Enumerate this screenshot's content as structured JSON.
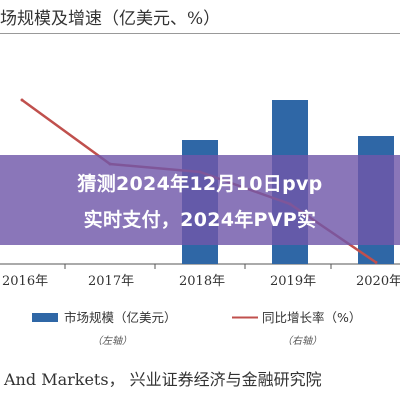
{
  "header": {
    "title": "场规模及增速（亿美元、%）"
  },
  "chart_data": {
    "type": "bar",
    "categories": [
      "2016年",
      "2017年",
      "2018年",
      "2019年",
      "2020年"
    ],
    "series": [
      {
        "name": "市场规模（亿美元）",
        "kind": "bar",
        "axis": "left",
        "values": [
          null,
          null,
          6.2,
          8.2,
          6.4
        ]
      },
      {
        "name": "同比增长率（%）",
        "kind": "line",
        "axis": "right",
        "values": [
          20.5,
          12.5,
          11.5,
          7.5,
          0.2
        ]
      }
    ],
    "ylim": [
      0,
      10
    ],
    "ylim_right": [
      0,
      25
    ],
    "colors": {
      "bar": "#2f67a6",
      "line": "#c0504d"
    },
    "legend_notes": {
      "left": "（左轴）",
      "right": "（右轴）"
    },
    "legend_position": "bottom"
  },
  "overlay": {
    "line1": "猜测2024年12月10日pvp",
    "line2": "实时支付，2024年PVP实"
  },
  "footer": {
    "source": "And Markets， 兴业证券经济与金融研究院"
  }
}
